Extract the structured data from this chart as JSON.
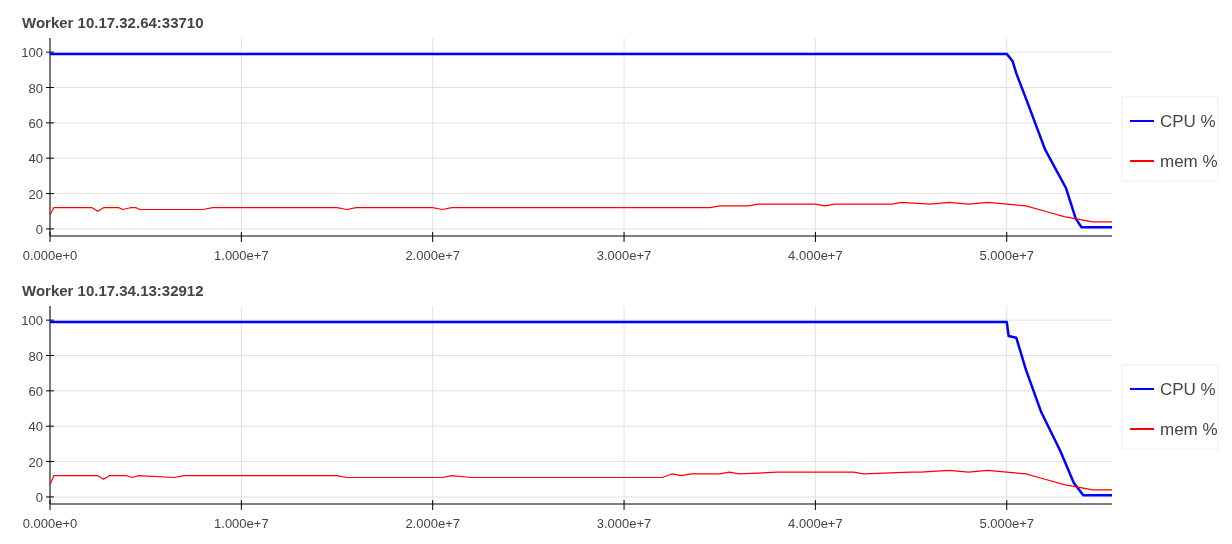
{
  "chart_data": [
    {
      "type": "line",
      "title": "Worker 10.17.32.64:33710",
      "xlim": [
        0,
        55500000.0
      ],
      "ylim": [
        -4,
        108
      ],
      "xticks": [
        {
          "value": 0,
          "label": "0.000e+0"
        },
        {
          "value": 10000000.0,
          "label": "1.000e+7"
        },
        {
          "value": 20000000.0,
          "label": "2.000e+7"
        },
        {
          "value": 30000000.0,
          "label": "3.000e+7"
        },
        {
          "value": 40000000.0,
          "label": "4.000e+7"
        },
        {
          "value": 50000000.0,
          "label": "5.000e+7"
        }
      ],
      "yticks": [
        0,
        20,
        40,
        60,
        80,
        100
      ],
      "grid": true,
      "legend": "right",
      "line_style": "solid",
      "marker": "none",
      "series": [
        {
          "name": "CPU %",
          "color": "#0000ff",
          "x": [
            0,
            50000000.0,
            50300000.0,
            50500000.0,
            51100000.0,
            52000000.0,
            53100000.0,
            53600000.0,
            53900000.0,
            55500000.0
          ],
          "values": [
            99,
            99,
            95,
            88,
            71,
            45,
            23,
            6,
            1,
            1
          ]
        },
        {
          "name": "mem %",
          "color": "#ff0000",
          "x": [
            0,
            200000.0,
            2200000.0,
            2500000.0,
            2800000.0,
            3600000.0,
            3800000.0,
            4200000.0,
            4500000.0,
            4700000.0,
            8000000.0,
            8500000.0,
            15000000.0,
            15500000.0,
            16000000.0,
            20000000.0,
            20500000.0,
            21000000.0,
            34500000.0,
            35000000.0,
            36500000.0,
            37000000.0,
            40000000.0,
            40500000.0,
            41000000.0,
            44000000.0,
            44500000.0,
            46000000.0,
            47000000.0,
            48000000.0,
            49000000.0,
            50000000.0,
            51000000.0,
            52000000.0,
            53000000.0,
            54000000.0,
            54500000.0,
            55500000.0
          ],
          "values": [
            8,
            12,
            12,
            10,
            12,
            12,
            11,
            12,
            12,
            11,
            11,
            12,
            12,
            11,
            12,
            12,
            11,
            12,
            12,
            13,
            13,
            14,
            14,
            13,
            14,
            14,
            15,
            14,
            15,
            14,
            15,
            14,
            13,
            10,
            7,
            5,
            4,
            4
          ]
        }
      ]
    },
    {
      "type": "line",
      "title": "Worker 10.17.34.13:32912",
      "xlim": [
        0,
        55500000.0
      ],
      "ylim": [
        -4,
        108
      ],
      "xticks": [
        {
          "value": 0,
          "label": "0.000e+0"
        },
        {
          "value": 10000000.0,
          "label": "1.000e+7"
        },
        {
          "value": 20000000.0,
          "label": "2.000e+7"
        },
        {
          "value": 30000000.0,
          "label": "3.000e+7"
        },
        {
          "value": 40000000.0,
          "label": "4.000e+7"
        },
        {
          "value": 50000000.0,
          "label": "5.000e+7"
        }
      ],
      "yticks": [
        0,
        20,
        40,
        60,
        80,
        100
      ],
      "grid": true,
      "legend": "right",
      "line_style": "solid",
      "marker": "none",
      "series": [
        {
          "name": "CPU %",
          "color": "#0000ff",
          "x": [
            0,
            50000000.0,
            50100000.0,
            50500000.0,
            51000000.0,
            51800000.0,
            52800000.0,
            53500000.0,
            54000000.0,
            55500000.0
          ],
          "values": [
            99,
            99,
            91,
            90,
            72,
            48,
            26,
            8,
            1,
            1
          ]
        },
        {
          "name": "mem %",
          "color": "#ff0000",
          "x": [
            0,
            200000.0,
            2500000.0,
            2800000.0,
            3100000.0,
            4000000.0,
            4300000.0,
            4600000.0,
            6500000.0,
            7000000.0,
            15000000.0,
            15500000.0,
            20500000.0,
            21000000.0,
            22000000.0,
            32000000.0,
            32500000.0,
            33000000.0,
            33500000.0,
            35000000.0,
            35500000.0,
            36000000.0,
            38000000.0,
            38500000.0,
            42000000.0,
            42500000.0,
            45000000.0,
            45500000.0,
            47000000.0,
            48000000.0,
            49000000.0,
            50000000.0,
            51000000.0,
            52000000.0,
            53000000.0,
            54000000.0,
            54500000.0,
            55500000.0
          ],
          "values": [
            7,
            12,
            12,
            10,
            12,
            12,
            11,
            12,
            11,
            12,
            12,
            11,
            11,
            12,
            11,
            11,
            13,
            12,
            13,
            13,
            14,
            13,
            14,
            14,
            14,
            13,
            14,
            14,
            15,
            14,
            15,
            14,
            13,
            10,
            7,
            5,
            4,
            4
          ]
        }
      ]
    }
  ]
}
